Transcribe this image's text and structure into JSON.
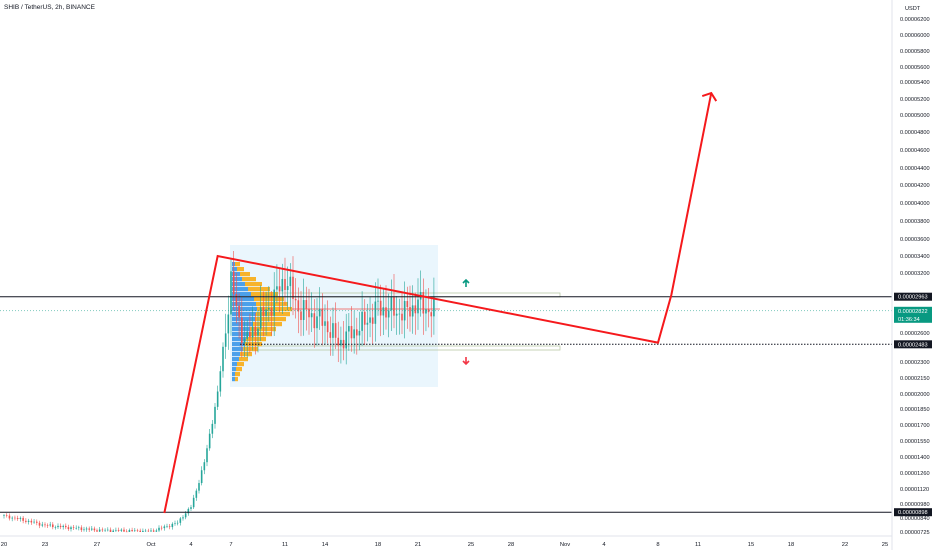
{
  "header": {
    "symbol": "SHIB / TetherUS, 2h, BINANCE"
  },
  "price_axis": {
    "unit": "USDT",
    "ticks": [
      "0.00006200",
      "0.00006000",
      "0.00005800",
      "0.00005600",
      "0.00005400",
      "0.00005200",
      "0.00005000",
      "0.00004800",
      "0.00004600",
      "0.00004400",
      "0.00004200",
      "0.00004000",
      "0.00003800",
      "0.00003600",
      "0.00003400",
      "0.00003200",
      "0.00002600",
      "0.00002300",
      "0.00002150",
      "0.00002000",
      "0.00001850",
      "0.00001700",
      "0.00001550",
      "0.00001400",
      "0.00001260",
      "0.00001120",
      "0.00000980",
      "0.00000840",
      "0.00000725"
    ]
  },
  "time_axis": {
    "ticks": [
      "20",
      "23",
      "27",
      "Oct",
      "4",
      "7",
      "11",
      "14",
      "18",
      "21",
      "25",
      "28",
      "Nov",
      "4",
      "8",
      "11",
      "15",
      "18",
      "22",
      "25"
    ]
  },
  "price_labels": {
    "resistance": "0.00002963",
    "last_price": "0.00002822",
    "countdown": "01:36:34",
    "support": "0.00002483",
    "base": "0.00000898"
  },
  "colors": {
    "projection": "#f5191c",
    "up_candle": "#26a69a",
    "down_candle": "#ef5350",
    "volume_profile_up": "#4ca0ea",
    "volume_profile_down": "#f7b32b",
    "range_box": "#d9eefb",
    "up_arrow": "#089981",
    "down_arrow": "#f23645",
    "level_line": "#131722",
    "last_price": "#089981"
  },
  "chart_data": {
    "type": "candlestick",
    "title": "SHIB / TetherUS, 2h, BINANCE",
    "ylabel": "USDT",
    "series": [
      {
        "name": "",
        "points": [
          {
            "x": "Sep 20",
            "y": 8.6e-06
          },
          {
            "x": "Sep 23",
            "y": 7.8e-06
          },
          {
            "x": "Sep 27",
            "y": 7.4e-06
          },
          {
            "x": "Oct 1",
            "y": 7.3e-06
          },
          {
            "x": "Oct 3",
            "y": 8e-06
          },
          {
            "x": "Oct 4",
            "y": 9.5e-06
          },
          {
            "x": "Oct 5",
            "y": 1.35e-05
          },
          {
            "x": "Oct 6",
            "y": 2e-05
          },
          {
            "x": "Oct 7",
            "y": 3.1e-05
          },
          {
            "x": "Oct 8",
            "y": 2.5e-05
          },
          {
            "x": "Oct 10",
            "y": 2.9e-05
          },
          {
            "x": "Oct 11",
            "y": 3.15e-05
          },
          {
            "x": "Oct 12",
            "y": 2.85e-05
          },
          {
            "x": "Oct 14",
            "y": 2.7e-05
          },
          {
            "x": "Oct 15",
            "y": 2.5e-05
          },
          {
            "x": "Oct 17",
            "y": 2.7e-05
          },
          {
            "x": "Oct 18",
            "y": 2.85e-05
          },
          {
            "x": "Oct 20",
            "y": 2.8e-05
          },
          {
            "x": "Oct 21",
            "y": 2.9e-05
          },
          {
            "x": "Oct 22",
            "y": 2.82e-05
          }
        ]
      }
    ],
    "levels": [
      {
        "label": "0.00002963",
        "value": 2.963e-05,
        "style": "solid"
      },
      {
        "label": "0.00002483",
        "value": 2.483e-05,
        "style": "dotted"
      },
      {
        "label": "0.00000898",
        "value": 8.98e-06,
        "style": "solid"
      },
      {
        "label": "0.00002822",
        "value": 2.822e-05,
        "style": "last"
      }
    ],
    "projection_path": [
      {
        "x": "Oct 2",
        "y": 8.9e-06
      },
      {
        "x": "Oct 6",
        "y": 3.4e-05
      },
      {
        "x": "Nov 8",
        "y": 2.5e-05
      },
      {
        "x": "Nov 9",
        "y": 2.98e-05
      },
      {
        "x": "Nov 12",
        "y": 5.27e-05
      }
    ],
    "grid": false,
    "legend": "none"
  }
}
